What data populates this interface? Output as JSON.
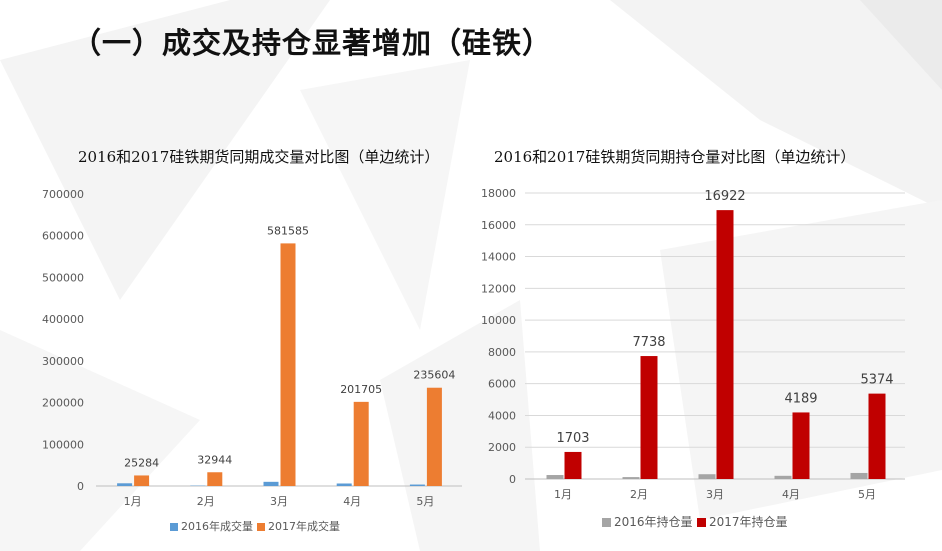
{
  "page": {
    "title": "（一）成交及持仓显著增加（硅铁）"
  },
  "chart_data": [
    {
      "type": "bar",
      "title": "2016和2017硅铁期货同期成交量对比图（单边统计）",
      "categories": [
        "1月",
        "2月",
        "3月",
        "4月",
        "5月"
      ],
      "series": [
        {
          "name": "2016年成交量",
          "color": "#5b9bd5",
          "values": [
            6500,
            900,
            10000,
            6000,
            3500
          ],
          "labels": [
            null,
            null,
            null,
            null,
            null
          ]
        },
        {
          "name": "2017年成交量",
          "color": "#ed7d31",
          "values": [
            25284,
            32944,
            581585,
            201705,
            235604
          ],
          "labels": [
            "25284",
            "32944",
            "581585",
            "201705",
            "235604"
          ]
        }
      ],
      "ylim": [
        0,
        700000
      ],
      "yticks": [
        0,
        100000,
        200000,
        300000,
        400000,
        500000,
        600000,
        700000
      ],
      "grid": false,
      "legend": "bottom"
    },
    {
      "type": "bar",
      "title": "2016和2017硅铁期货同期持仓量对比图（单边统计）",
      "categories": [
        "1月",
        "2月",
        "3月",
        "4月",
        "5月"
      ],
      "series": [
        {
          "name": "2016年持仓量",
          "color": "#a5a5a5",
          "values": [
            250,
            120,
            300,
            200,
            380
          ],
          "labels": [
            null,
            null,
            null,
            null,
            null
          ]
        },
        {
          "name": "2017年持仓量",
          "color": "#c00000",
          "values": [
            1703,
            7738,
            16922,
            4189,
            5374
          ],
          "labels": [
            "1703",
            "7738",
            "16922",
            "4189",
            "5374"
          ]
        }
      ],
      "ylim": [
        0,
        18000
      ],
      "yticks": [
        0,
        2000,
        4000,
        6000,
        8000,
        10000,
        12000,
        14000,
        16000,
        18000
      ],
      "grid": true,
      "legend": "bottom"
    }
  ]
}
